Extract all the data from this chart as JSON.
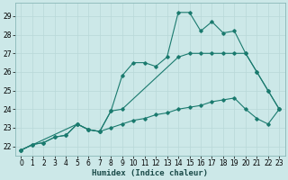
{
  "xlabel": "Humidex (Indice chaleur)",
  "bg_color": "#cce8e8",
  "grid_color": "#b8d8d8",
  "line_color": "#1a7a6e",
  "xlim": [
    -0.5,
    23.5
  ],
  "ylim": [
    21.5,
    29.7
  ],
  "yticks": [
    22,
    23,
    24,
    25,
    26,
    27,
    28,
    29
  ],
  "xticks": [
    0,
    1,
    2,
    3,
    4,
    5,
    6,
    7,
    8,
    9,
    10,
    11,
    12,
    13,
    14,
    15,
    16,
    17,
    18,
    19,
    20,
    21,
    22,
    23
  ],
  "line1": {
    "x": [
      0,
      1,
      2,
      3,
      4,
      5,
      6,
      7,
      8,
      9,
      10,
      11,
      12,
      13,
      14,
      15,
      16,
      17,
      18,
      19,
      20,
      21,
      22,
      23
    ],
    "y": [
      21.8,
      22.1,
      22.2,
      22.5,
      22.6,
      23.2,
      22.9,
      22.8,
      23.9,
      25.8,
      26.5,
      26.5,
      26.3,
      26.8,
      29.2,
      29.2,
      28.2,
      28.7,
      28.1,
      28.2,
      27.0,
      26.0,
      25.0,
      24.0
    ]
  },
  "line2": {
    "x": [
      0,
      5,
      6,
      7,
      8,
      9,
      14,
      15,
      16,
      17,
      18,
      19,
      20,
      21,
      22,
      23
    ],
    "y": [
      21.8,
      23.2,
      22.9,
      22.8,
      23.9,
      24.0,
      26.8,
      27.0,
      27.0,
      27.0,
      27.0,
      27.0,
      27.0,
      26.0,
      25.0,
      24.0
    ]
  },
  "line3": {
    "x": [
      0,
      1,
      2,
      3,
      4,
      5,
      6,
      7,
      8,
      9,
      10,
      11,
      12,
      13,
      14,
      15,
      16,
      17,
      18,
      19,
      20,
      21,
      22,
      23
    ],
    "y": [
      21.8,
      22.1,
      22.2,
      22.5,
      22.6,
      23.2,
      22.9,
      22.8,
      23.0,
      23.2,
      23.4,
      23.5,
      23.7,
      23.8,
      24.0,
      24.1,
      24.2,
      24.4,
      24.5,
      24.6,
      24.0,
      23.5,
      23.2,
      24.0
    ]
  }
}
